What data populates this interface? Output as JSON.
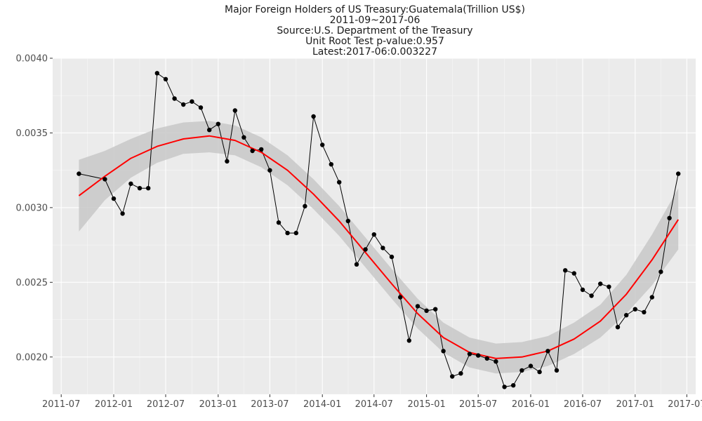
{
  "chart_data": {
    "type": "line",
    "title_lines": [
      "Major Foreign Holders of US Treasury:Guatemala(Trillion US$)",
      "2011-09~2017-06",
      "Source:U.S. Department of the Treasury",
      "Unit Root Test p-value:0.957",
      "Latest:2017-06:0.003227"
    ],
    "xlabel": "",
    "ylabel": "",
    "x_range": [
      "2011-06-01",
      "2017-08-01"
    ],
    "ylim": [
      0.00175,
      0.004
    ],
    "x_ticks": [
      {
        "date": "2011-07-01",
        "label": "2011-07"
      },
      {
        "date": "2012-01-01",
        "label": "2012-01"
      },
      {
        "date": "2012-07-01",
        "label": "2012-07"
      },
      {
        "date": "2013-01-01",
        "label": "2013-01"
      },
      {
        "date": "2013-07-01",
        "label": "2013-07"
      },
      {
        "date": "2014-01-01",
        "label": "2014-01"
      },
      {
        "date": "2014-07-01",
        "label": "2014-07"
      },
      {
        "date": "2015-01-01",
        "label": "2015-01"
      },
      {
        "date": "2015-07-01",
        "label": "2015-07"
      },
      {
        "date": "2016-01-01",
        "label": "2016-01"
      },
      {
        "date": "2016-07-01",
        "label": "2016-07"
      },
      {
        "date": "2017-01-01",
        "label": "2017-01"
      },
      {
        "date": "2017-07-01",
        "label": "2017-07"
      }
    ],
    "y_ticks": [
      {
        "value": 0.002,
        "label": "0.0020"
      },
      {
        "value": 0.0025,
        "label": "0.0025"
      },
      {
        "value": 0.003,
        "label": "0.0030"
      },
      {
        "value": 0.0035,
        "label": "0.0035"
      },
      {
        "value": 0.004,
        "label": "0.0040"
      }
    ],
    "grid": true,
    "legend": "none",
    "series": [
      {
        "values": [
          {
            "x": "2011-09",
            "y": 0.003227
          },
          {
            "x": "2011-12",
            "y": 0.00319
          },
          {
            "x": "2012-01",
            "y": 0.00306
          },
          {
            "x": "2012-02",
            "y": 0.00296
          },
          {
            "x": "2012-03",
            "y": 0.00316
          },
          {
            "x": "2012-04",
            "y": 0.00313
          },
          {
            "x": "2012-05",
            "y": 0.00313
          },
          {
            "x": "2012-06",
            "y": 0.0039
          },
          {
            "x": "2012-07",
            "y": 0.00386
          },
          {
            "x": "2012-08",
            "y": 0.00373
          },
          {
            "x": "2012-09",
            "y": 0.00369
          },
          {
            "x": "2012-10",
            "y": 0.00371
          },
          {
            "x": "2012-11",
            "y": 0.00367
          },
          {
            "x": "2012-12",
            "y": 0.00352
          },
          {
            "x": "2013-01",
            "y": 0.00356
          },
          {
            "x": "2013-02",
            "y": 0.00331
          },
          {
            "x": "2013-03",
            "y": 0.00365
          },
          {
            "x": "2013-04",
            "y": 0.00347
          },
          {
            "x": "2013-05",
            "y": 0.00338
          },
          {
            "x": "2013-06",
            "y": 0.00339
          },
          {
            "x": "2013-07",
            "y": 0.00325
          },
          {
            "x": "2013-08",
            "y": 0.0029
          },
          {
            "x": "2013-09",
            "y": 0.00283
          },
          {
            "x": "2013-10",
            "y": 0.00283
          },
          {
            "x": "2013-11",
            "y": 0.00301
          },
          {
            "x": "2013-12",
            "y": 0.00361
          },
          {
            "x": "2014-01",
            "y": 0.00342
          },
          {
            "x": "2014-02",
            "y": 0.00329
          },
          {
            "x": "2014-03",
            "y": 0.00317
          },
          {
            "x": "2014-04",
            "y": 0.00291
          },
          {
            "x": "2014-05",
            "y": 0.00262
          },
          {
            "x": "2014-06",
            "y": 0.00272
          },
          {
            "x": "2014-07",
            "y": 0.00282
          },
          {
            "x": "2014-08",
            "y": 0.00273
          },
          {
            "x": "2014-09",
            "y": 0.00267
          },
          {
            "x": "2014-10",
            "y": 0.0024
          },
          {
            "x": "2014-11",
            "y": 0.00211
          },
          {
            "x": "2014-12",
            "y": 0.00234
          },
          {
            "x": "2015-01",
            "y": 0.00231
          },
          {
            "x": "2015-02",
            "y": 0.00232
          },
          {
            "x": "2015-03",
            "y": 0.00204
          },
          {
            "x": "2015-04",
            "y": 0.00187
          },
          {
            "x": "2015-05",
            "y": 0.00189
          },
          {
            "x": "2015-06",
            "y": 0.00202
          },
          {
            "x": "2015-07",
            "y": 0.00201
          },
          {
            "x": "2015-08",
            "y": 0.00199
          },
          {
            "x": "2015-09",
            "y": 0.00197
          },
          {
            "x": "2015-10",
            "y": 0.0018
          },
          {
            "x": "2015-11",
            "y": 0.00181
          },
          {
            "x": "2015-12",
            "y": 0.00191
          },
          {
            "x": "2016-01",
            "y": 0.00194
          },
          {
            "x": "2016-02",
            "y": 0.0019
          },
          {
            "x": "2016-03",
            "y": 0.00204
          },
          {
            "x": "2016-04",
            "y": 0.00191
          },
          {
            "x": "2016-05",
            "y": 0.00258
          },
          {
            "x": "2016-06",
            "y": 0.00256
          },
          {
            "x": "2016-07",
            "y": 0.00245
          },
          {
            "x": "2016-08",
            "y": 0.00241
          },
          {
            "x": "2016-09",
            "y": 0.00249
          },
          {
            "x": "2016-10",
            "y": 0.00247
          },
          {
            "x": "2016-11",
            "y": 0.0022
          },
          {
            "x": "2016-12",
            "y": 0.00228
          },
          {
            "x": "2017-01",
            "y": 0.00232
          },
          {
            "x": "2017-02",
            "y": 0.0023
          },
          {
            "x": "2017-03",
            "y": 0.0024
          },
          {
            "x": "2017-04",
            "y": 0.00257
          },
          {
            "x": "2017-05",
            "y": 0.00293
          },
          {
            "x": "2017-06",
            "y": 0.003227
          }
        ]
      }
    ],
    "smooth_fit": {
      "method": "loess",
      "points": [
        {
          "x": "2011-09",
          "y": 0.00308,
          "lo": 0.00284,
          "hi": 0.00332
        },
        {
          "x": "2011-12",
          "y": 0.00321,
          "lo": 0.00305,
          "hi": 0.00338
        },
        {
          "x": "2012-03",
          "y": 0.00333,
          "lo": 0.0032,
          "hi": 0.00346
        },
        {
          "x": "2012-06",
          "y": 0.00341,
          "lo": 0.0033,
          "hi": 0.00353
        },
        {
          "x": "2012-09",
          "y": 0.00346,
          "lo": 0.00336,
          "hi": 0.00357
        },
        {
          "x": "2012-12",
          "y": 0.00348,
          "lo": 0.00337,
          "hi": 0.00358
        },
        {
          "x": "2013-03",
          "y": 0.00345,
          "lo": 0.00335,
          "hi": 0.00355
        },
        {
          "x": "2013-06",
          "y": 0.00337,
          "lo": 0.00327,
          "hi": 0.00347
        },
        {
          "x": "2013-09",
          "y": 0.00325,
          "lo": 0.00315,
          "hi": 0.00335
        },
        {
          "x": "2013-12",
          "y": 0.00309,
          "lo": 0.00299,
          "hi": 0.00319
        },
        {
          "x": "2014-03",
          "y": 0.00291,
          "lo": 0.00281,
          "hi": 0.00301
        },
        {
          "x": "2014-06",
          "y": 0.0027,
          "lo": 0.0026,
          "hi": 0.0028
        },
        {
          "x": "2014-09",
          "y": 0.00249,
          "lo": 0.00239,
          "hi": 0.00259
        },
        {
          "x": "2014-12",
          "y": 0.00229,
          "lo": 0.00219,
          "hi": 0.00239
        },
        {
          "x": "2015-03",
          "y": 0.00213,
          "lo": 0.00203,
          "hi": 0.00223
        },
        {
          "x": "2015-06",
          "y": 0.00203,
          "lo": 0.00193,
          "hi": 0.00213
        },
        {
          "x": "2015-09",
          "y": 0.00199,
          "lo": 0.00189,
          "hi": 0.00209
        },
        {
          "x": "2015-12",
          "y": 0.002,
          "lo": 0.0019,
          "hi": 0.0021
        },
        {
          "x": "2016-03",
          "y": 0.00204,
          "lo": 0.00194,
          "hi": 0.00214
        },
        {
          "x": "2016-06",
          "y": 0.00212,
          "lo": 0.00202,
          "hi": 0.00223
        },
        {
          "x": "2016-09",
          "y": 0.00224,
          "lo": 0.00213,
          "hi": 0.00235
        },
        {
          "x": "2016-12",
          "y": 0.00242,
          "lo": 0.00229,
          "hi": 0.00255
        },
        {
          "x": "2017-03",
          "y": 0.00265,
          "lo": 0.00248,
          "hi": 0.00282
        },
        {
          "x": "2017-06",
          "y": 0.00292,
          "lo": 0.00272,
          "hi": 0.00313
        }
      ]
    },
    "colors": {
      "panel_bg": "#ebebeb",
      "grid_major": "#ffffff",
      "line": "#000000",
      "point": "#000000",
      "fit_line": "#ff0000",
      "ribbon": "#c8c8c8",
      "tick_text": "#4d4d4d",
      "title_text": "#1a1a1a"
    }
  }
}
